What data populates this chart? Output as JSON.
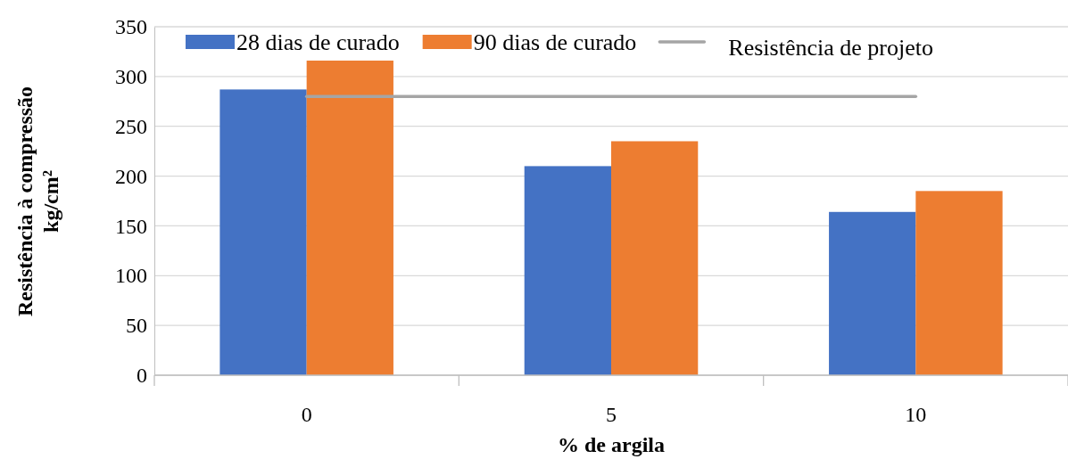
{
  "chart_data": {
    "type": "bar",
    "xlabel": "% de argila",
    "ylabel": "Resistência à compressão\nkg/cm²",
    "categories": [
      "0",
      "5",
      "10"
    ],
    "series": [
      {
        "name": "28 dias de curado",
        "color": "#4472c4",
        "values": [
          287,
          210,
          164
        ]
      },
      {
        "name": "90 dias de curado",
        "color": "#ed7d31",
        "values": [
          316,
          235,
          185
        ]
      }
    ],
    "ref_lines": [
      {
        "axis": "y",
        "value": 280,
        "label": "Resistência de projeto",
        "color": "#a5a5a5"
      }
    ],
    "ylim": [
      0,
      350
    ],
    "yticks": [
      0,
      50,
      100,
      150,
      200,
      250,
      300,
      350
    ],
    "grid": "y",
    "legend": "top"
  }
}
